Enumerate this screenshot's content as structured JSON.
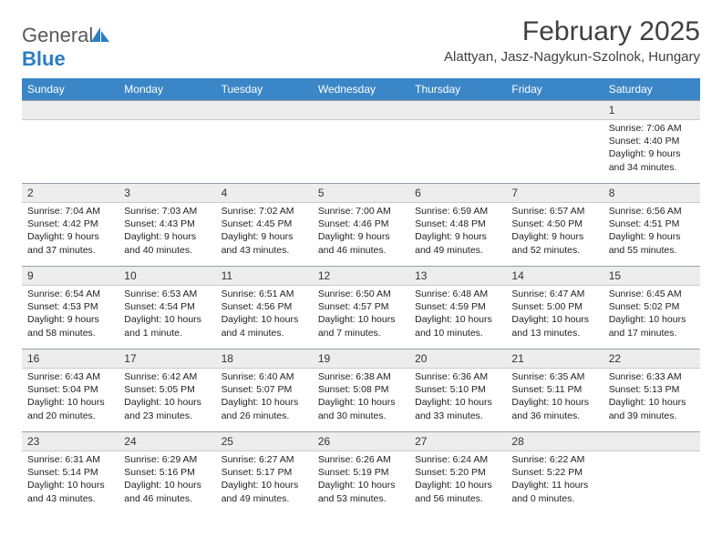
{
  "logo": {
    "text_gray": "General",
    "text_blue": "Blue"
  },
  "title": "February 2025",
  "location": "Alattyan, Jasz-Nagykun-Szolnok, Hungary",
  "colors": {
    "header_bg": "#3b86c6",
    "daynum_bg": "#ededed",
    "border": "#9aa0a6",
    "text": "#222"
  },
  "weekdays": [
    "Sunday",
    "Monday",
    "Tuesday",
    "Wednesday",
    "Thursday",
    "Friday",
    "Saturday"
  ],
  "weeks": [
    [
      {
        "n": "",
        "l": []
      },
      {
        "n": "",
        "l": []
      },
      {
        "n": "",
        "l": []
      },
      {
        "n": "",
        "l": []
      },
      {
        "n": "",
        "l": []
      },
      {
        "n": "",
        "l": []
      },
      {
        "n": "1",
        "l": [
          "Sunrise: 7:06 AM",
          "Sunset: 4:40 PM",
          "Daylight: 9 hours and 34 minutes."
        ]
      }
    ],
    [
      {
        "n": "2",
        "l": [
          "Sunrise: 7:04 AM",
          "Sunset: 4:42 PM",
          "Daylight: 9 hours and 37 minutes."
        ]
      },
      {
        "n": "3",
        "l": [
          "Sunrise: 7:03 AM",
          "Sunset: 4:43 PM",
          "Daylight: 9 hours and 40 minutes."
        ]
      },
      {
        "n": "4",
        "l": [
          "Sunrise: 7:02 AM",
          "Sunset: 4:45 PM",
          "Daylight: 9 hours and 43 minutes."
        ]
      },
      {
        "n": "5",
        "l": [
          "Sunrise: 7:00 AM",
          "Sunset: 4:46 PM",
          "Daylight: 9 hours and 46 minutes."
        ]
      },
      {
        "n": "6",
        "l": [
          "Sunrise: 6:59 AM",
          "Sunset: 4:48 PM",
          "Daylight: 9 hours and 49 minutes."
        ]
      },
      {
        "n": "7",
        "l": [
          "Sunrise: 6:57 AM",
          "Sunset: 4:50 PM",
          "Daylight: 9 hours and 52 minutes."
        ]
      },
      {
        "n": "8",
        "l": [
          "Sunrise: 6:56 AM",
          "Sunset: 4:51 PM",
          "Daylight: 9 hours and 55 minutes."
        ]
      }
    ],
    [
      {
        "n": "9",
        "l": [
          "Sunrise: 6:54 AM",
          "Sunset: 4:53 PM",
          "Daylight: 9 hours and 58 minutes."
        ]
      },
      {
        "n": "10",
        "l": [
          "Sunrise: 6:53 AM",
          "Sunset: 4:54 PM",
          "Daylight: 10 hours and 1 minute."
        ]
      },
      {
        "n": "11",
        "l": [
          "Sunrise: 6:51 AM",
          "Sunset: 4:56 PM",
          "Daylight: 10 hours and 4 minutes."
        ]
      },
      {
        "n": "12",
        "l": [
          "Sunrise: 6:50 AM",
          "Sunset: 4:57 PM",
          "Daylight: 10 hours and 7 minutes."
        ]
      },
      {
        "n": "13",
        "l": [
          "Sunrise: 6:48 AM",
          "Sunset: 4:59 PM",
          "Daylight: 10 hours and 10 minutes."
        ]
      },
      {
        "n": "14",
        "l": [
          "Sunrise: 6:47 AM",
          "Sunset: 5:00 PM",
          "Daylight: 10 hours and 13 minutes."
        ]
      },
      {
        "n": "15",
        "l": [
          "Sunrise: 6:45 AM",
          "Sunset: 5:02 PM",
          "Daylight: 10 hours and 17 minutes."
        ]
      }
    ],
    [
      {
        "n": "16",
        "l": [
          "Sunrise: 6:43 AM",
          "Sunset: 5:04 PM",
          "Daylight: 10 hours and 20 minutes."
        ]
      },
      {
        "n": "17",
        "l": [
          "Sunrise: 6:42 AM",
          "Sunset: 5:05 PM",
          "Daylight: 10 hours and 23 minutes."
        ]
      },
      {
        "n": "18",
        "l": [
          "Sunrise: 6:40 AM",
          "Sunset: 5:07 PM",
          "Daylight: 10 hours and 26 minutes."
        ]
      },
      {
        "n": "19",
        "l": [
          "Sunrise: 6:38 AM",
          "Sunset: 5:08 PM",
          "Daylight: 10 hours and 30 minutes."
        ]
      },
      {
        "n": "20",
        "l": [
          "Sunrise: 6:36 AM",
          "Sunset: 5:10 PM",
          "Daylight: 10 hours and 33 minutes."
        ]
      },
      {
        "n": "21",
        "l": [
          "Sunrise: 6:35 AM",
          "Sunset: 5:11 PM",
          "Daylight: 10 hours and 36 minutes."
        ]
      },
      {
        "n": "22",
        "l": [
          "Sunrise: 6:33 AM",
          "Sunset: 5:13 PM",
          "Daylight: 10 hours and 39 minutes."
        ]
      }
    ],
    [
      {
        "n": "23",
        "l": [
          "Sunrise: 6:31 AM",
          "Sunset: 5:14 PM",
          "Daylight: 10 hours and 43 minutes."
        ]
      },
      {
        "n": "24",
        "l": [
          "Sunrise: 6:29 AM",
          "Sunset: 5:16 PM",
          "Daylight: 10 hours and 46 minutes."
        ]
      },
      {
        "n": "25",
        "l": [
          "Sunrise: 6:27 AM",
          "Sunset: 5:17 PM",
          "Daylight: 10 hours and 49 minutes."
        ]
      },
      {
        "n": "26",
        "l": [
          "Sunrise: 6:26 AM",
          "Sunset: 5:19 PM",
          "Daylight: 10 hours and 53 minutes."
        ]
      },
      {
        "n": "27",
        "l": [
          "Sunrise: 6:24 AM",
          "Sunset: 5:20 PM",
          "Daylight: 10 hours and 56 minutes."
        ]
      },
      {
        "n": "28",
        "l": [
          "Sunrise: 6:22 AM",
          "Sunset: 5:22 PM",
          "Daylight: 11 hours and 0 minutes."
        ]
      },
      {
        "n": "",
        "l": []
      }
    ]
  ]
}
